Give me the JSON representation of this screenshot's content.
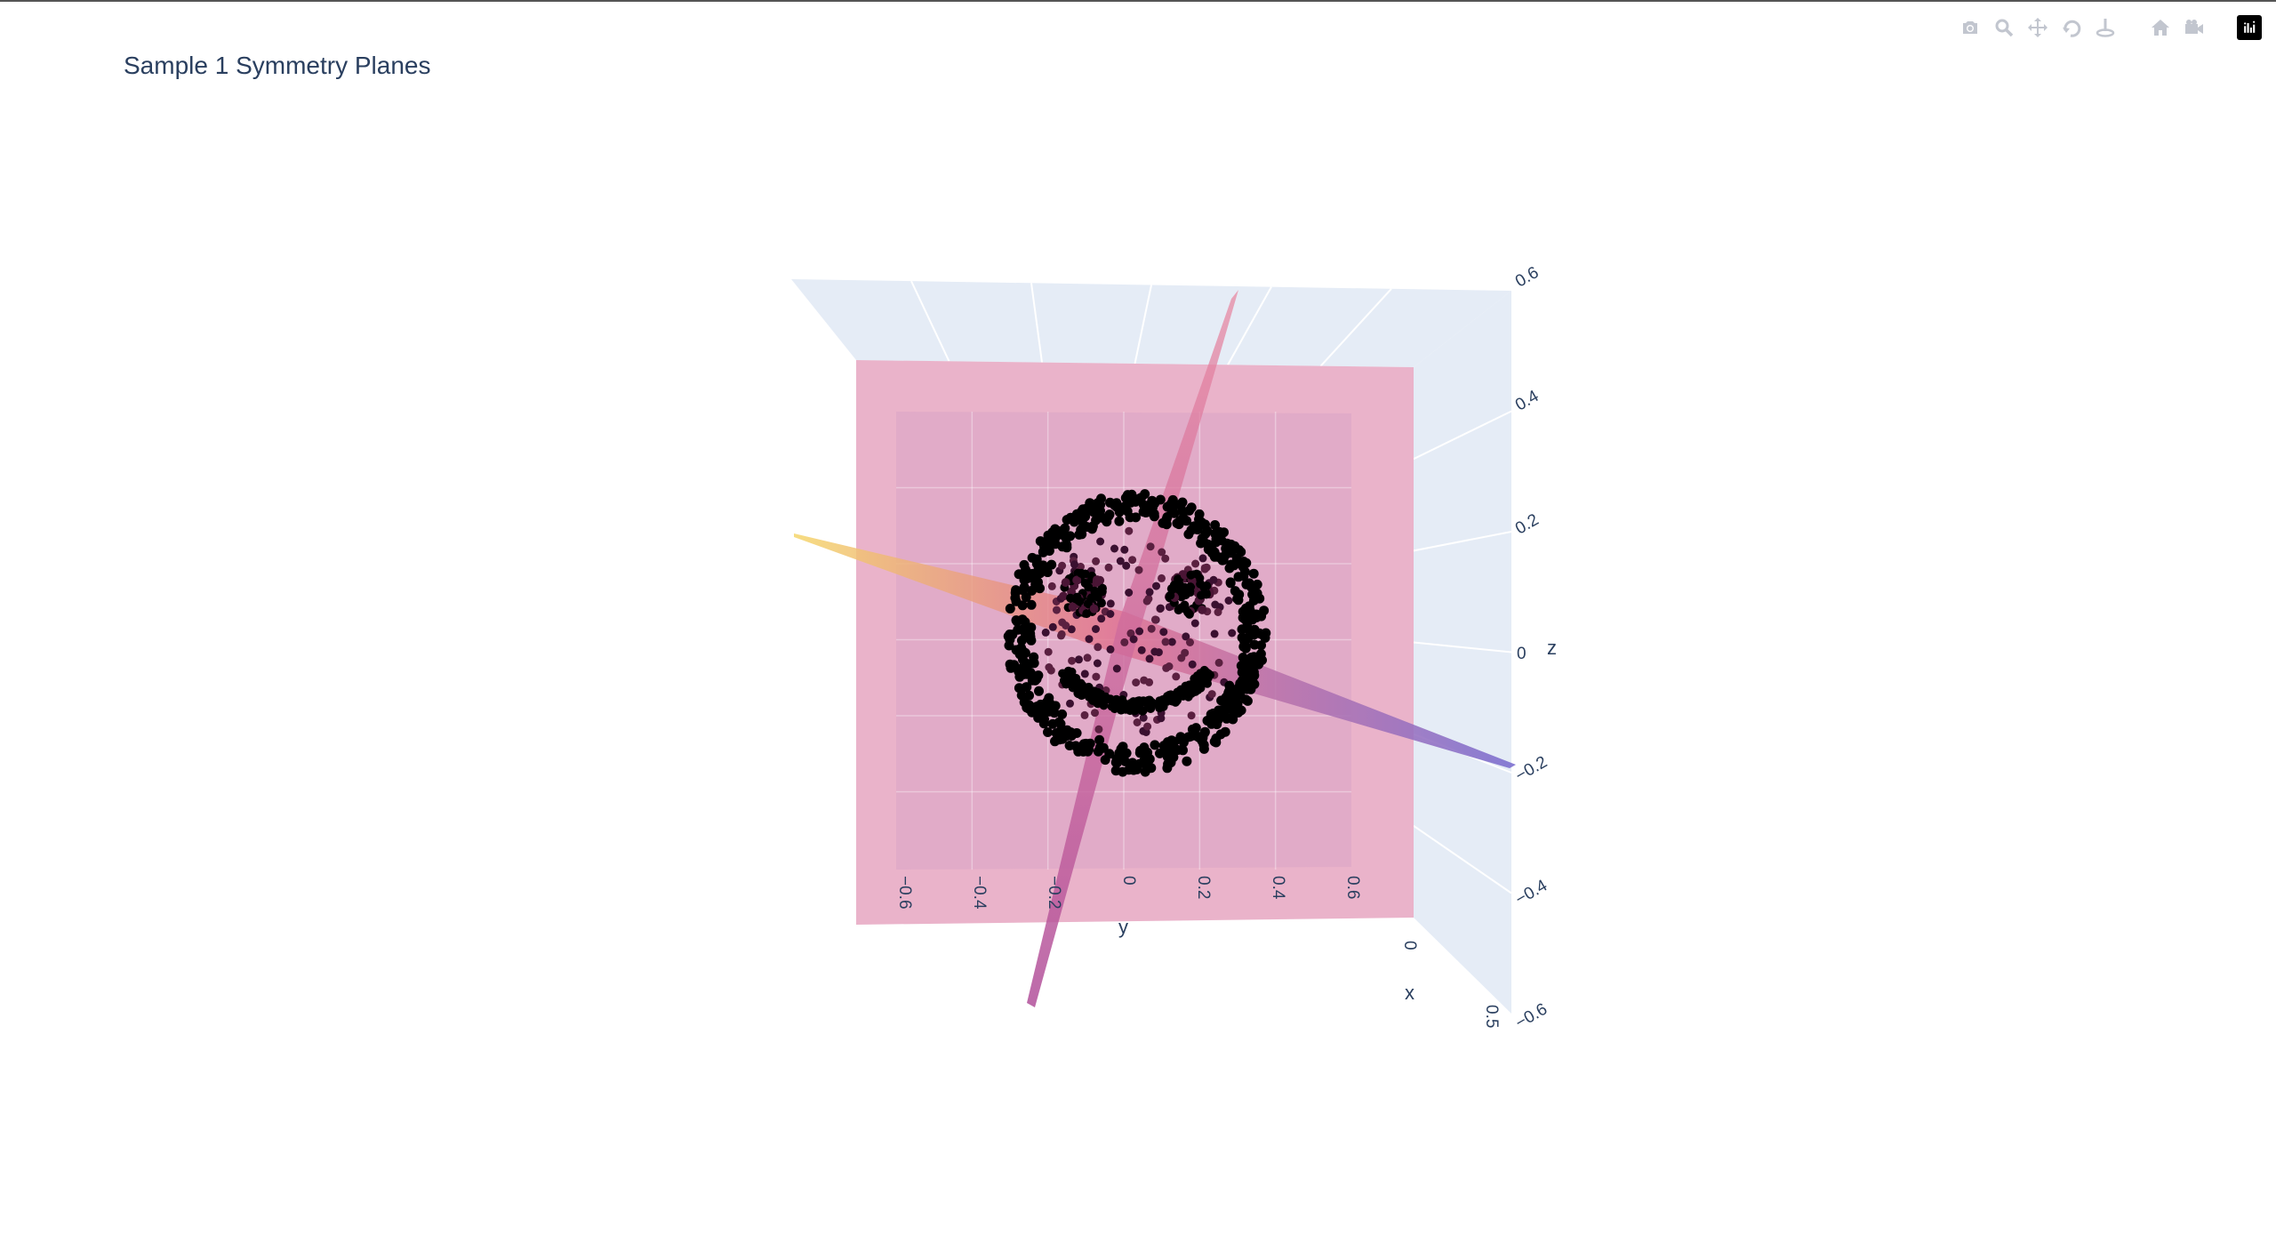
{
  "title": "Sample 1 Symmetry Planes",
  "modebar": {
    "buttons": [
      {
        "name": "download-plot-button",
        "icon": "camera-icon"
      },
      {
        "name": "zoom-button",
        "icon": "magnifier-icon"
      },
      {
        "name": "pan-button",
        "icon": "move-icon"
      },
      {
        "name": "orbit-rotation-button",
        "icon": "orbit-icon"
      },
      {
        "name": "turntable-rotation-button",
        "icon": "turntable-icon"
      },
      {
        "name": "reset-camera-button",
        "icon": "home-icon"
      },
      {
        "name": "save-camera-button",
        "icon": "camera-video-icon"
      }
    ],
    "logo": "plotly-logo-icon"
  },
  "chart_data": {
    "type": "scatter3d",
    "title": "Sample 1 Symmetry Planes",
    "axes": {
      "x": {
        "title": "x",
        "ticks": [
          "0",
          "0.5"
        ],
        "range": [
          -0.6,
          0.6
        ]
      },
      "y": {
        "title": "y",
        "ticks": [
          "−0.6",
          "−0.4",
          "−0.2",
          "0",
          "0.2",
          "0.4",
          "0.6"
        ],
        "range": [
          -0.6,
          0.6
        ]
      },
      "z": {
        "title": "z",
        "ticks": [
          "−0.6",
          "−0.4",
          "−0.2",
          "0",
          "0.2",
          "0.4",
          "0.6"
        ],
        "range": [
          -0.6,
          0.6
        ]
      }
    },
    "point_cloud": {
      "shape": "smiley face",
      "color": "#000000",
      "outer_ring_radius": 0.2,
      "mouth_radius": 0.14,
      "eye_offsets": [
        [
          -0.08,
          0.06
        ],
        [
          0.08,
          0.06
        ]
      ]
    },
    "planes": [
      {
        "orientation": "vertical",
        "colors": [
          "#e8849e",
          "#d65c8c"
        ]
      },
      {
        "orientation": "horizontal",
        "colors": [
          "#f5d66b",
          "#e07090",
          "#7b6fd0"
        ]
      },
      {
        "orientation": "front",
        "color": "#e399b8"
      }
    ],
    "grid": true,
    "background": "#e5ecf6"
  }
}
